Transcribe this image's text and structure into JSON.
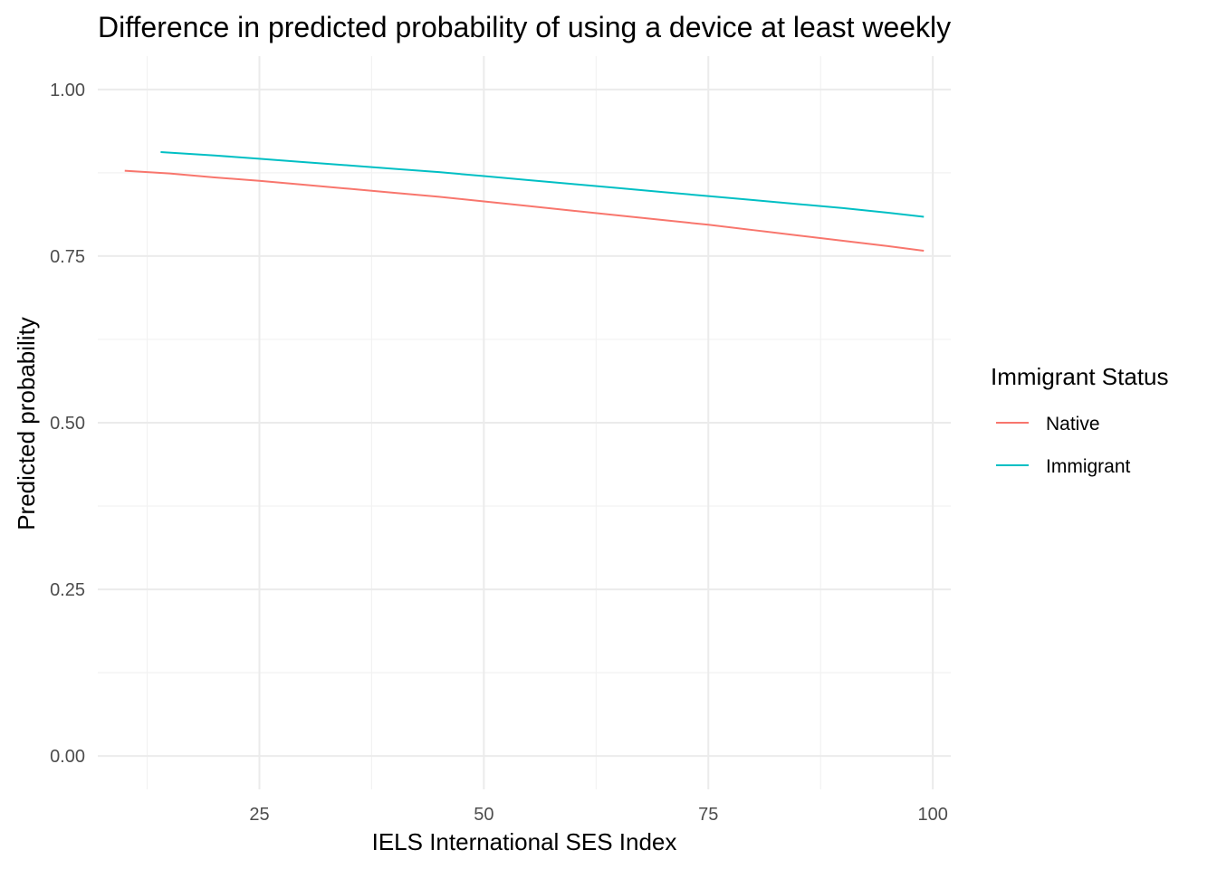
{
  "chart_data": {
    "type": "line",
    "title": "Difference in predicted probability of using a device at least weekly",
    "xlabel": "IELS International SES Index",
    "ylabel": "Predicted probability",
    "xlim": [
      7,
      102
    ],
    "ylim": [
      -0.05,
      1.05
    ],
    "x_ticks": [
      25,
      50,
      75,
      100
    ],
    "x_tick_labels": [
      "25",
      "50",
      "75",
      "100"
    ],
    "y_ticks": [
      0,
      0.25,
      0.5,
      0.75,
      1.0
    ],
    "y_tick_labels": [
      "0.00",
      "0.25",
      "0.50",
      "0.75",
      "1.00"
    ],
    "grid": true,
    "legend": {
      "title": "Immigrant Status",
      "placement": "right"
    },
    "series": [
      {
        "name": "Native",
        "color": "#F8766D",
        "x": [
          10,
          15,
          20,
          25,
          30,
          35,
          40,
          45,
          50,
          55,
          60,
          65,
          70,
          75,
          80,
          85,
          90,
          95,
          99
        ],
        "values": [
          0.878,
          0.874,
          0.868,
          0.863,
          0.857,
          0.851,
          0.845,
          0.839,
          0.832,
          0.825,
          0.818,
          0.811,
          0.804,
          0.797,
          0.789,
          0.781,
          0.773,
          0.765,
          0.758
        ]
      },
      {
        "name": "Immigrant",
        "color": "#00BFC4",
        "x": [
          14,
          20,
          25,
          30,
          35,
          40,
          45,
          50,
          55,
          60,
          65,
          70,
          75,
          80,
          85,
          90,
          95,
          99
        ],
        "values": [
          0.906,
          0.901,
          0.896,
          0.891,
          0.886,
          0.881,
          0.876,
          0.87,
          0.864,
          0.858,
          0.852,
          0.846,
          0.84,
          0.834,
          0.828,
          0.822,
          0.815,
          0.809
        ]
      }
    ]
  }
}
